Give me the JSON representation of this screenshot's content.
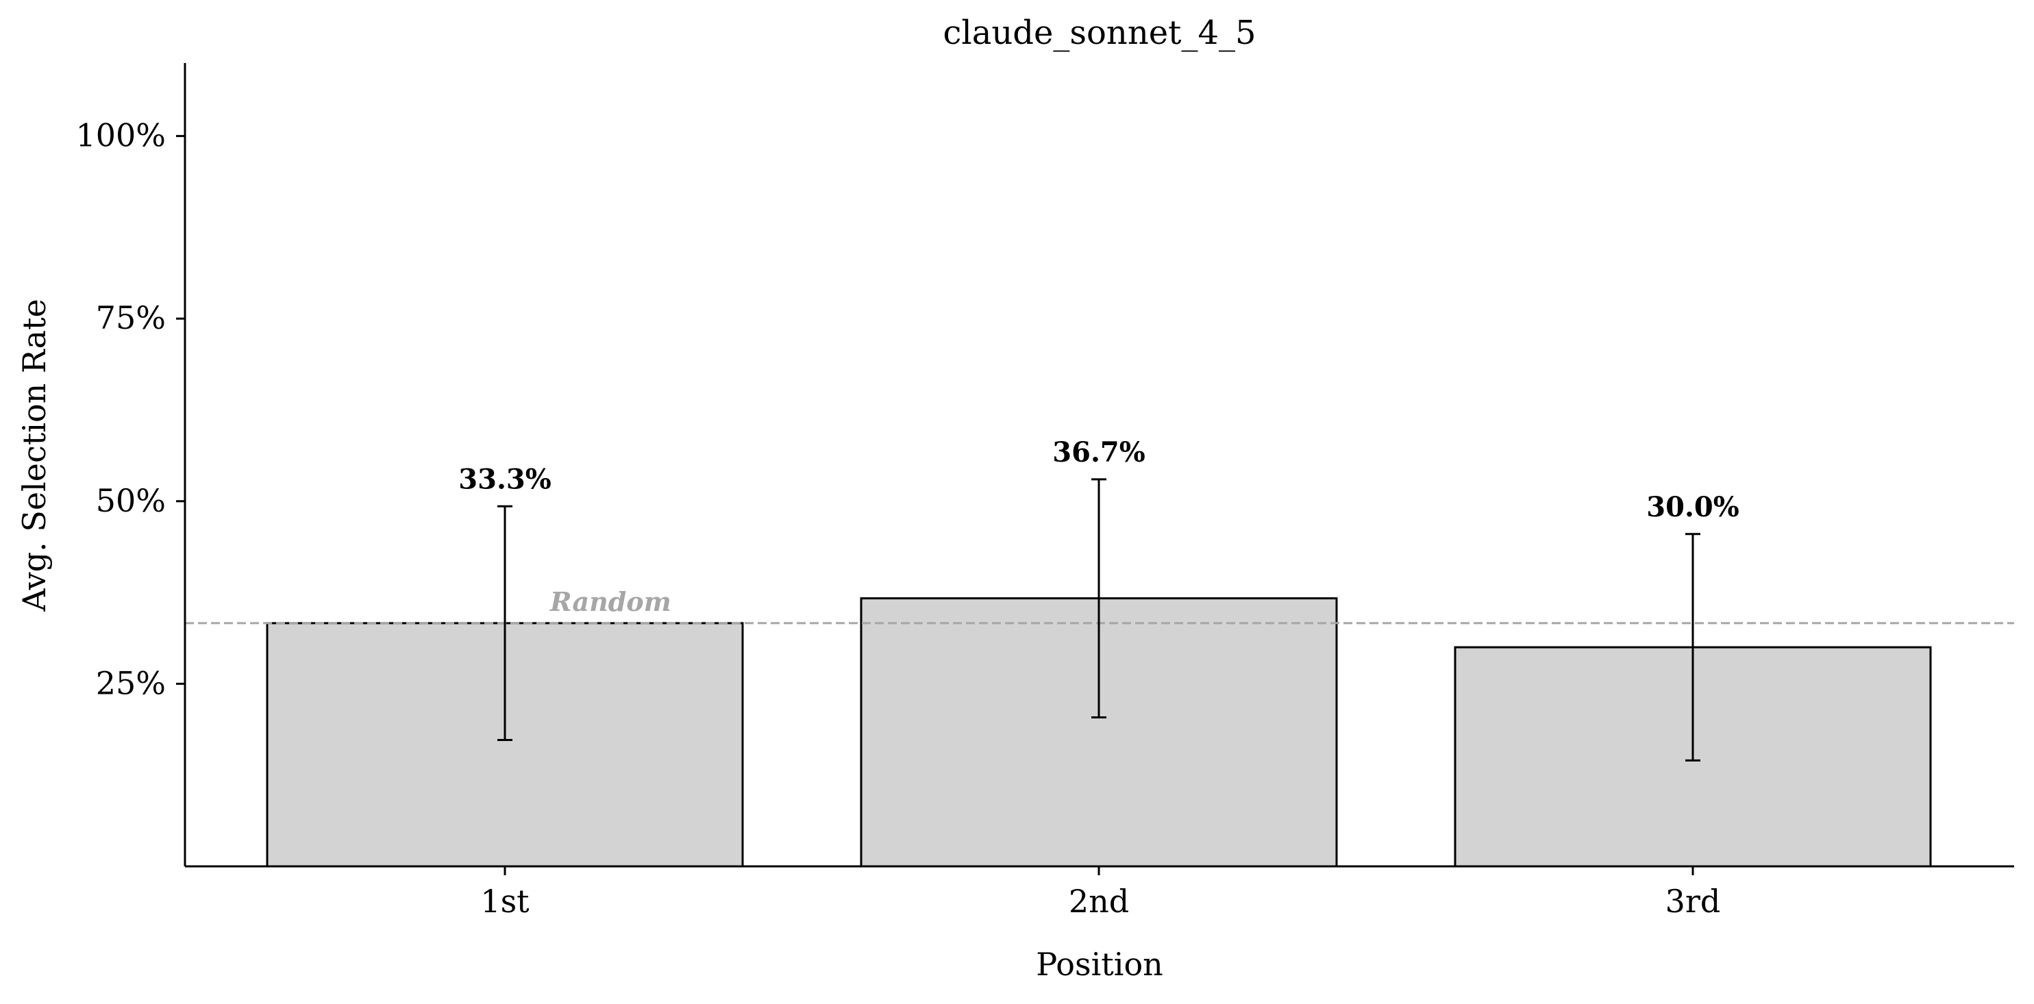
{
  "chart_data": {
    "type": "bar",
    "title": "claude_sonnet_4_5",
    "xlabel": "Position",
    "ylabel": "Avg. Selection Rate",
    "categories": [
      "1st",
      "2nd",
      "3rd"
    ],
    "values": [
      33.3,
      36.7,
      30.0
    ],
    "value_labels": [
      "33.3%",
      "36.7%",
      "30.0%"
    ],
    "error_low": [
      17.3,
      20.4,
      14.5
    ],
    "error_high": [
      49.3,
      53.0,
      45.5
    ],
    "ylim": [
      0,
      110
    ],
    "yticks": [
      25,
      50,
      75,
      100
    ],
    "ytick_labels": [
      "25%",
      "50%",
      "75%",
      "100%"
    ],
    "reference_line": {
      "value": 33.3,
      "label": "Random",
      "style": "dashed"
    },
    "grid": false,
    "colors": {
      "bar_fill": "#d3d3d3",
      "bar_edge": "#000000",
      "reference_line": "#a6a6a6",
      "reference_label": "#a6a6a6",
      "text": "#000000"
    }
  }
}
